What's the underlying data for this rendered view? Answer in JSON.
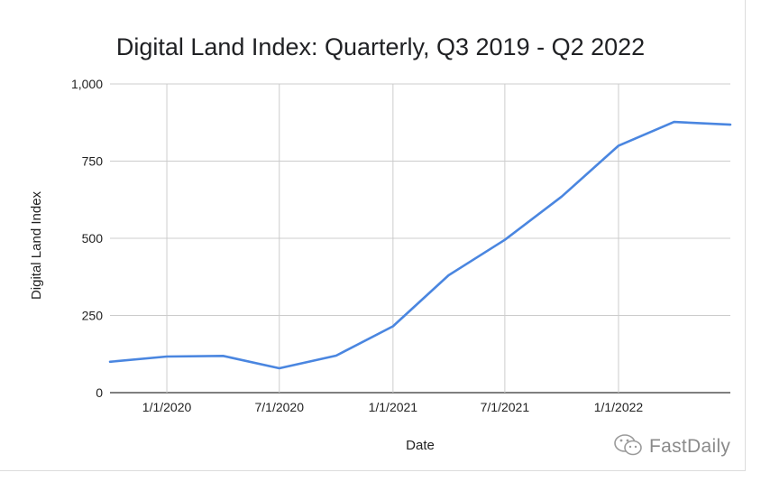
{
  "chart_data": {
    "type": "line",
    "title": "Digital Land Index: Quarterly, Q3 2019 - Q2 2022",
    "xlabel": "Date",
    "ylabel": "Digital Land Index",
    "xlim": [
      "2019-10-01",
      "2022-07-01"
    ],
    "ylim": [
      0,
      1000
    ],
    "y_ticks": [
      0,
      250,
      500,
      750,
      1000
    ],
    "y_tick_labels": [
      "0",
      "250",
      "500",
      "750",
      "1,000"
    ],
    "x_ticks": [
      "2020-01-01",
      "2020-07-01",
      "2021-01-01",
      "2021-07-01",
      "2022-01-01"
    ],
    "x_tick_labels": [
      "1/1/2020",
      "7/1/2020",
      "1/1/2021",
      "7/1/2021",
      "1/1/2022"
    ],
    "grid": true,
    "series": [
      {
        "color": "#4a86e0",
        "x": [
          "2019-10-01",
          "2020-01-01",
          "2020-04-01",
          "2020-07-01",
          "2020-10-01",
          "2021-01-01",
          "2021-04-01",
          "2021-07-01",
          "2021-10-01",
          "2022-01-01",
          "2022-04-01",
          "2022-07-01"
        ],
        "y": [
          100,
          117,
          119,
          79,
          120,
          215,
          380,
          495,
          635,
          800,
          877,
          868
        ]
      }
    ]
  },
  "watermark": {
    "text": "FastDaily",
    "icon": "wechat-icon"
  }
}
